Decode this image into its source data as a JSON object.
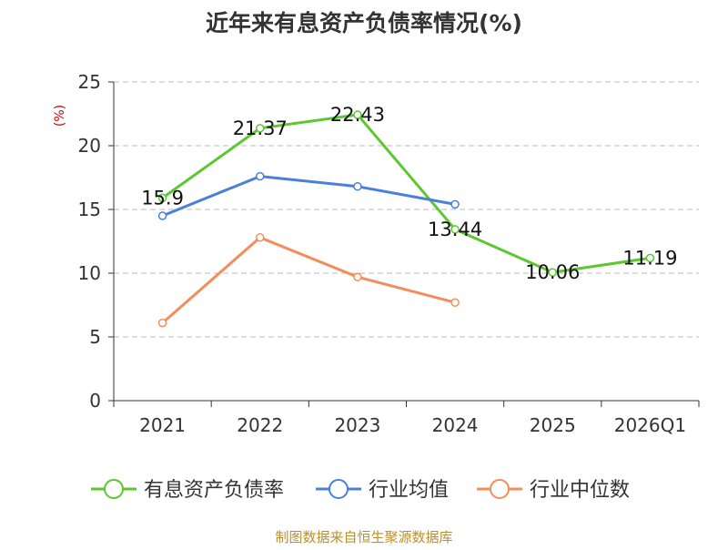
{
  "chart_data": {
    "type": "line",
    "title": "近年来有息资产负债率情况(%)",
    "ylabel": "(%)",
    "xlabel": "",
    "categories": [
      "2021",
      "2022",
      "2023",
      "2024",
      "2025",
      "2026Q1"
    ],
    "ylim": [
      0,
      25
    ],
    "yticks": [
      0,
      5,
      10,
      15,
      20,
      25
    ],
    "grid": true,
    "legend_position": "bottom",
    "series": [
      {
        "name": "有息资产负债率",
        "color": "#5cc72f",
        "values": [
          15.9,
          21.37,
          22.43,
          13.44,
          10.06,
          11.19
        ],
        "labels": [
          "15.9",
          "21.37",
          "22.43",
          "13.44",
          "10.06",
          "11.19"
        ]
      },
      {
        "name": "行业均值",
        "color": "#4a7fdc",
        "values": [
          14.5,
          17.6,
          16.8,
          15.4,
          null,
          null
        ]
      },
      {
        "name": "行业中位数",
        "color": "#f58d5a",
        "values": [
          6.1,
          12.8,
          9.7,
          7.7,
          null,
          null
        ]
      }
    ]
  },
  "footer": {
    "source": "制图数据来自恒生聚源数据库"
  },
  "colors": {
    "ylabel": "#cc0000",
    "footer": "#b8912a",
    "axis": "#333333",
    "grid": "#bbbbbb"
  }
}
